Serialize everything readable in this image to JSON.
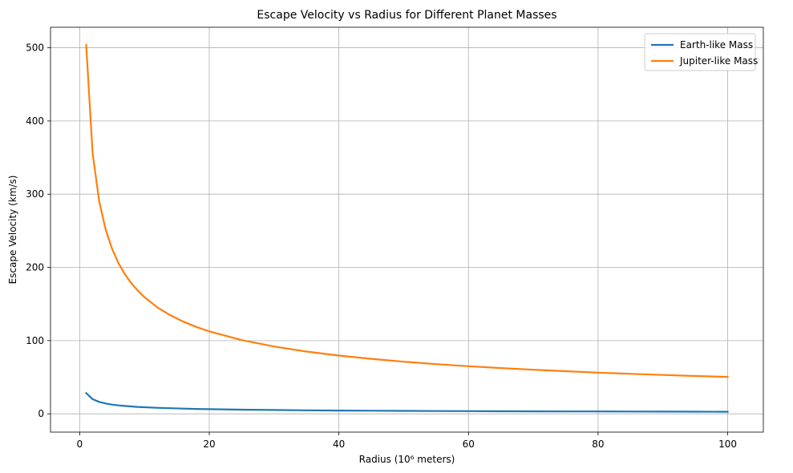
{
  "chart_data": {
    "type": "line",
    "title": "Escape Velocity vs Radius for Different Planet Masses",
    "xlabel": "Radius (10⁶ meters)",
    "ylabel": "Escape Velocity (km/s)",
    "xlim": [
      -4.5,
      105.5
    ],
    "ylim": [
      -25,
      528
    ],
    "xticks": [
      0,
      20,
      40,
      60,
      80,
      100
    ],
    "yticks": [
      0,
      100,
      200,
      300,
      400,
      500
    ],
    "grid": true,
    "legend_position": "top-right",
    "x": [
      1,
      2,
      3,
      4,
      5,
      6,
      7,
      8,
      9,
      10,
      12,
      14,
      16,
      18,
      20,
      25,
      30,
      35,
      40,
      45,
      50,
      55,
      60,
      65,
      70,
      75,
      80,
      85,
      90,
      95,
      100
    ],
    "series": [
      {
        "name": "Earth-like Mass",
        "color": "#1f77b4",
        "values": [
          28.3,
          20.0,
          16.3,
          14.1,
          12.6,
          11.5,
          10.7,
          10.0,
          9.4,
          8.9,
          8.2,
          7.6,
          7.1,
          6.7,
          6.3,
          5.7,
          5.2,
          4.8,
          4.5,
          4.2,
          4.0,
          3.8,
          3.7,
          3.5,
          3.4,
          3.3,
          3.2,
          3.1,
          3.0,
          2.9,
          2.8
        ]
      },
      {
        "name": "Jupiter-like Mass",
        "color": "#ff7f0e",
        "values": [
          503.7,
          356.2,
          290.8,
          251.9,
          225.3,
          205.6,
          190.4,
          178.1,
          167.9,
          159.3,
          145.4,
          134.6,
          125.9,
          118.7,
          112.6,
          100.7,
          92.0,
          85.1,
          79.6,
          75.1,
          71.2,
          67.9,
          65.0,
          62.5,
          60.2,
          58.2,
          56.3,
          54.6,
          53.1,
          51.7,
          50.4
        ]
      }
    ]
  }
}
